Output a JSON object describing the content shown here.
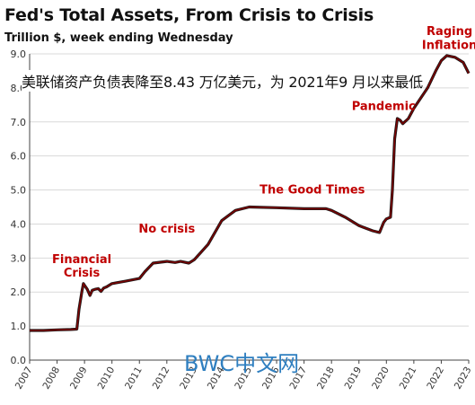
{
  "chart_data": {
    "type": "line",
    "title": "Fed's Total Assets, From Crisis to Crisis",
    "subtitle": "Trillion $, week ending Wednesday",
    "overlay_text": "美联储资产负债表降至8.43 万亿美元，为 2021年9 月以来最低",
    "watermark": "BWC中文网",
    "ylim": [
      0,
      9
    ],
    "xlim": [
      2007,
      2023
    ],
    "y_ticks": [
      "0.0",
      "1.0",
      "2.0",
      "3.0",
      "4.0",
      "5.0",
      "6.0",
      "7.0",
      "8.0",
      "9.0"
    ],
    "x_ticks": [
      "2007",
      "2008",
      "2009",
      "2010",
      "2011",
      "2012",
      "2013",
      "2014",
      "2015",
      "2016",
      "2017",
      "2018",
      "2019",
      "2020",
      "2021",
      "2022",
      "2023"
    ],
    "grid": true,
    "colors": {
      "line": "#7a0000",
      "annotation": "#c00000",
      "grid": "#d9d9d9"
    },
    "annotations": [
      {
        "text": "Financial",
        "x": 2008.9,
        "y": 2.85
      },
      {
        "text": "Crisis",
        "x": 2008.9,
        "y": 2.45
      },
      {
        "text": "No crisis",
        "x": 2012.0,
        "y": 3.75
      },
      {
        "text": "The Good Times",
        "x": 2017.3,
        "y": 4.9
      },
      {
        "text": "Pandemic",
        "x": 2019.9,
        "y": 7.35
      },
      {
        "text": "Raging",
        "x": 2022.3,
        "y": 9.55
      },
      {
        "text": "Inflation",
        "x": 2022.3,
        "y": 9.15
      }
    ],
    "series": [
      {
        "points": [
          [
            2007.0,
            0.87
          ],
          [
            2007.5,
            0.87
          ],
          [
            2008.0,
            0.89
          ],
          [
            2008.5,
            0.9
          ],
          [
            2008.72,
            0.91
          ],
          [
            2008.8,
            1.5
          ],
          [
            2008.9,
            2.0
          ],
          [
            2008.96,
            2.25
          ],
          [
            2009.0,
            2.2
          ],
          [
            2009.1,
            2.08
          ],
          [
            2009.2,
            1.9
          ],
          [
            2009.28,
            2.05
          ],
          [
            2009.38,
            2.08
          ],
          [
            2009.5,
            2.1
          ],
          [
            2009.6,
            2.02
          ],
          [
            2009.7,
            2.12
          ],
          [
            2009.8,
            2.15
          ],
          [
            2010.0,
            2.25
          ],
          [
            2010.5,
            2.32
          ],
          [
            2011.0,
            2.4
          ],
          [
            2011.2,
            2.6
          ],
          [
            2011.5,
            2.85
          ],
          [
            2012.0,
            2.9
          ],
          [
            2012.3,
            2.87
          ],
          [
            2012.5,
            2.9
          ],
          [
            2012.8,
            2.85
          ],
          [
            2013.0,
            2.95
          ],
          [
            2013.5,
            3.4
          ],
          [
            2014.0,
            4.1
          ],
          [
            2014.5,
            4.4
          ],
          [
            2015.0,
            4.5
          ],
          [
            2016.0,
            4.48
          ],
          [
            2017.0,
            4.45
          ],
          [
            2017.8,
            4.45
          ],
          [
            2018.0,
            4.4
          ],
          [
            2018.5,
            4.2
          ],
          [
            2019.0,
            3.95
          ],
          [
            2019.5,
            3.8
          ],
          [
            2019.75,
            3.75
          ],
          [
            2019.9,
            4.05
          ],
          [
            2020.0,
            4.15
          ],
          [
            2020.15,
            4.2
          ],
          [
            2020.22,
            5.0
          ],
          [
            2020.3,
            6.5
          ],
          [
            2020.4,
            7.1
          ],
          [
            2020.5,
            7.05
          ],
          [
            2020.6,
            6.95
          ],
          [
            2020.8,
            7.1
          ],
          [
            2021.0,
            7.4
          ],
          [
            2021.5,
            8.0
          ],
          [
            2021.8,
            8.5
          ],
          [
            2022.0,
            8.8
          ],
          [
            2022.2,
            8.95
          ],
          [
            2022.5,
            8.9
          ],
          [
            2022.8,
            8.75
          ],
          [
            2023.0,
            8.43
          ]
        ]
      }
    ]
  }
}
